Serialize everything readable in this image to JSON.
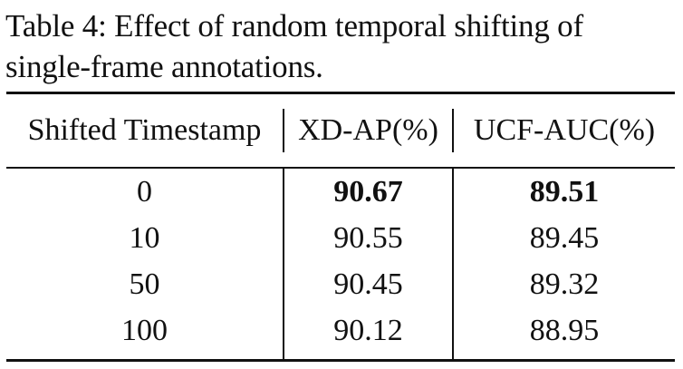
{
  "caption": {
    "line1": "Table 4: Effect of random temporal shifting of",
    "line2": "single-frame annotations."
  },
  "table": {
    "headers": [
      "Shifted Timestamp",
      "XD-AP(%)",
      "UCF-AUC(%)"
    ],
    "rows": [
      [
        "0",
        "90.67",
        "89.51"
      ],
      [
        "10",
        "90.55",
        "89.45"
      ],
      [
        "50",
        "90.45",
        "89.32"
      ],
      [
        "100",
        "90.12",
        "88.95"
      ]
    ],
    "bold_row_index": 0
  }
}
